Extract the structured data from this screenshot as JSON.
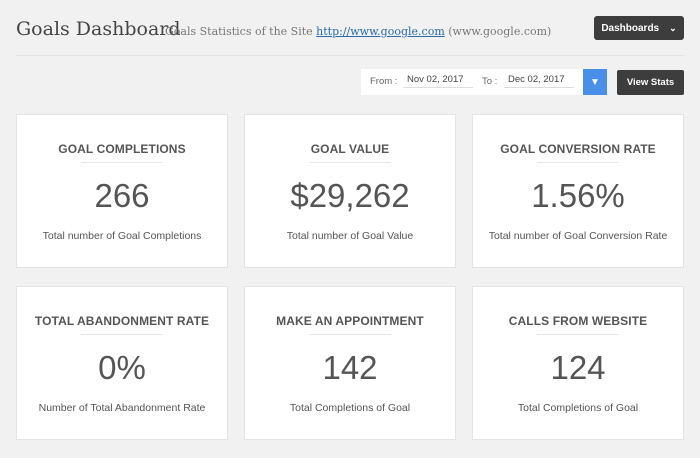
{
  "header": {
    "title": "Goals Dashboard",
    "subtitle_prefix": "Goals Statistics of the Site",
    "site_link": "http://www.google.com",
    "site_host": "(www.google.com)",
    "dashboards_label": "Dashboards"
  },
  "filters": {
    "from_label": "From :",
    "from_value": "Nov 02, 2017",
    "to_label": "To :",
    "to_value": "Dec 02, 2017",
    "view_label": "View Stats"
  },
  "cards": [
    {
      "title": "GOAL COMPLETIONS",
      "value": "266",
      "desc": "Total number of Goal Completions"
    },
    {
      "title": "GOAL VALUE",
      "value": "$29,262",
      "desc": "Total number of Goal Value"
    },
    {
      "title": "GOAL CONVERSION RATE",
      "value": "1.56%",
      "desc": "Total number of Goal Conversion Rate"
    },
    {
      "title": "TOTAL ABANDONMENT RATE",
      "value": "0%",
      "desc": "Number of Total Abandonment Rate"
    },
    {
      "title": "MAKE AN APPOINTMENT",
      "value": "142",
      "desc": "Total Completions of Goal"
    },
    {
      "title": "CALLS FROM WEBSITE",
      "value": "124",
      "desc": "Total Completions of Goal"
    }
  ],
  "colors": {
    "accent": "#4a8fe7",
    "dark_button": "#3d3d3d",
    "background": "#f1f1f1"
  },
  "icons": {
    "dashboards_toggle": "chevron-down-icon",
    "date_toggle": "chevron-down-icon"
  }
}
